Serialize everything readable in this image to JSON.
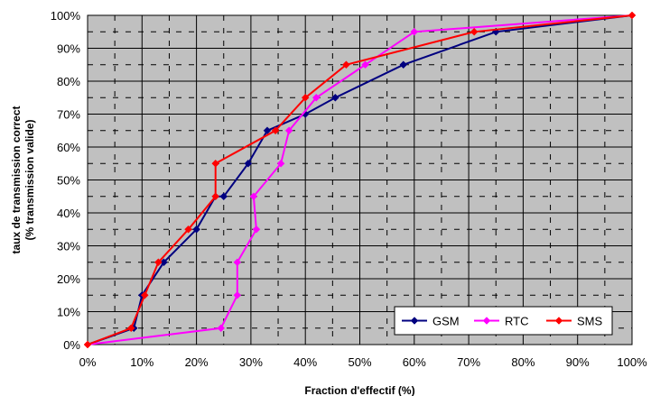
{
  "chart_data": {
    "type": "line",
    "title": "",
    "xlabel": "Fraction d'effectif (%)",
    "ylabel_lines": [
      "taux de transmission correct",
      "(% transmission valide)"
    ],
    "xlim": [
      0,
      100
    ],
    "ylim": [
      0,
      100
    ],
    "x_ticks": [
      "0%",
      "10%",
      "20%",
      "30%",
      "40%",
      "50%",
      "60%",
      "70%",
      "80%",
      "90%",
      "100%"
    ],
    "y_ticks": [
      "0%",
      "10%",
      "20%",
      "30%",
      "40%",
      "50%",
      "60%",
      "70%",
      "80%",
      "90%",
      "100%"
    ],
    "grid": true,
    "plot_background": "#c0c0c0",
    "legend_position": "bottom-right",
    "series": [
      {
        "name": "GSM",
        "color": "#000080",
        "marker": "diamond",
        "points": [
          [
            0,
            0
          ],
          [
            8.5,
            5
          ],
          [
            10,
            15
          ],
          [
            14,
            25
          ],
          [
            20,
            35
          ],
          [
            23.5,
            45
          ],
          [
            25,
            45
          ],
          [
            29.5,
            55
          ],
          [
            33,
            65
          ],
          [
            40,
            70
          ],
          [
            45.5,
            75
          ],
          [
            58,
            85
          ],
          [
            75,
            95
          ],
          [
            100,
            100
          ]
        ]
      },
      {
        "name": "RTC",
        "color": "#ff00ff",
        "marker": "diamond",
        "points": [
          [
            0,
            0
          ],
          [
            24.5,
            5
          ],
          [
            27.5,
            15
          ],
          [
            27.5,
            25
          ],
          [
            31,
            35
          ],
          [
            30.5,
            45
          ],
          [
            35.5,
            55
          ],
          [
            37,
            65
          ],
          [
            42,
            75
          ],
          [
            51,
            85
          ],
          [
            60,
            95
          ],
          [
            100,
            100
          ]
        ]
      },
      {
        "name": "SMS",
        "color": "#ff0000",
        "marker": "diamond",
        "points": [
          [
            0,
            0
          ],
          [
            8,
            5
          ],
          [
            10.5,
            15
          ],
          [
            13,
            25
          ],
          [
            18.5,
            35
          ],
          [
            23.5,
            45
          ],
          [
            23.5,
            55
          ],
          [
            34.5,
            65
          ],
          [
            40,
            75
          ],
          [
            47.5,
            85
          ],
          [
            71,
            95
          ],
          [
            100,
            100
          ]
        ]
      }
    ]
  }
}
